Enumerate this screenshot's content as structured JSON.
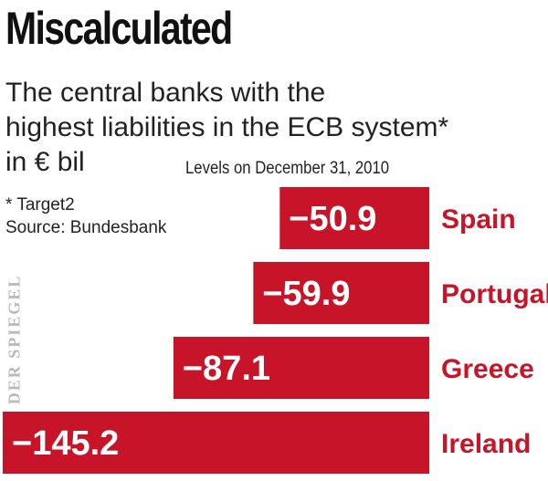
{
  "header": {
    "title": "Miscalculated",
    "subtitle_lines": [
      "The central banks with the",
      "highest liabilities in the ECB system*",
      "in € bil"
    ],
    "date_note": "Levels on December 31, 2010"
  },
  "footnote": {
    "target_note": "* Target2",
    "source": "Source: Bundesbank"
  },
  "watermark": "DER SPIEGEL",
  "colors": {
    "bar": "#c81428",
    "label": "#c81428"
  },
  "chart_data": {
    "type": "bar",
    "orientation": "horizontal",
    "title": "Miscalculated",
    "subtitle": "The central banks with the highest liabilities in the ECB system* in € bil",
    "note": "Levels on December 31, 2010",
    "unit": "€ bil",
    "categories": [
      "Spain",
      "Portugal",
      "Greece",
      "Ireland"
    ],
    "values": [
      -50.9,
      -59.9,
      -87.1,
      -145.2
    ],
    "value_labels": [
      "−50.9",
      "−59.9",
      "−87.1",
      "−145.2"
    ],
    "xlim": [
      -145.2,
      0
    ],
    "grid": false,
    "legend": "none"
  }
}
